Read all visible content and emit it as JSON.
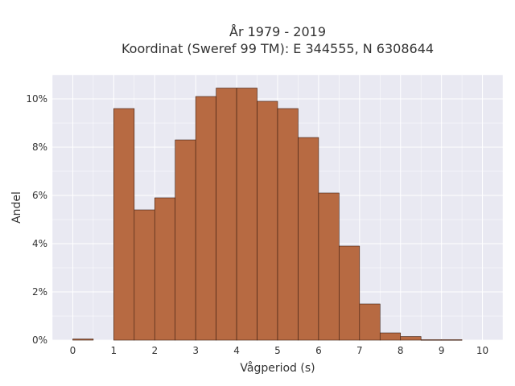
{
  "chart_data": {
    "type": "bar",
    "title_lines": [
      "År 1979 - 2019",
      "Koordinat (Sweref 99 TM): E 344555, N 6308644"
    ],
    "xlabel": "Vågperiod (s)",
    "ylabel": "Andel",
    "xlim": [
      -0.5,
      10.5
    ],
    "ylim": [
      0,
      11
    ],
    "x_ticks": [
      0,
      1,
      2,
      3,
      4,
      5,
      6,
      7,
      8,
      9,
      10
    ],
    "y_ticks": [
      0,
      2,
      4,
      6,
      8,
      10
    ],
    "y_tick_labels": [
      "0%",
      "2%",
      "4%",
      "6%",
      "8%",
      "10%"
    ],
    "bin_width": 0.5,
    "bins": [
      {
        "start": 0.0,
        "value": 0.05
      },
      {
        "start": 0.5,
        "value": 0.0
      },
      {
        "start": 1.0,
        "value": 9.6
      },
      {
        "start": 1.5,
        "value": 5.4
      },
      {
        "start": 2.0,
        "value": 5.9
      },
      {
        "start": 2.5,
        "value": 8.3
      },
      {
        "start": 3.0,
        "value": 10.1
      },
      {
        "start": 3.5,
        "value": 10.45
      },
      {
        "start": 4.0,
        "value": 10.45
      },
      {
        "start": 4.5,
        "value": 9.9
      },
      {
        "start": 5.0,
        "value": 9.6
      },
      {
        "start": 5.5,
        "value": 8.4
      },
      {
        "start": 6.0,
        "value": 6.1
      },
      {
        "start": 6.5,
        "value": 3.9
      },
      {
        "start": 7.0,
        "value": 1.5
      },
      {
        "start": 7.5,
        "value": 0.3
      },
      {
        "start": 8.0,
        "value": 0.15
      },
      {
        "start": 8.5,
        "value": 0.02
      },
      {
        "start": 9.0,
        "value": 0.02
      }
    ],
    "grid": true,
    "colors": {
      "bar_fill": "#b76a42",
      "bar_stroke": "#3d1d10",
      "plot_bg": "#e9e9f2",
      "grid": "#ffffff"
    }
  }
}
